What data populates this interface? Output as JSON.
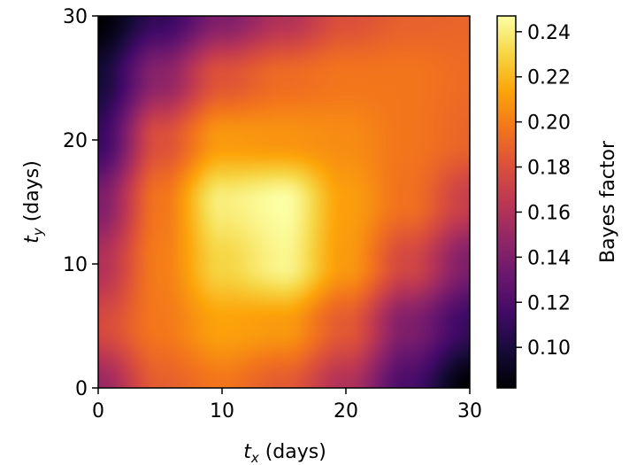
{
  "chart_data": {
    "type": "heatmap",
    "title": "",
    "xlabel": {
      "symbol": "t",
      "subscript": "x",
      "unit": " (days)"
    },
    "ylabel": {
      "symbol": "t",
      "subscript": "y",
      "unit": " (days)"
    },
    "xlim": [
      0,
      30
    ],
    "ylim": [
      0,
      30
    ],
    "xticks": [
      0,
      10,
      20,
      30
    ],
    "yticks": [
      0,
      10,
      20,
      30
    ],
    "colormap": "inferno",
    "grid": false,
    "colorbar": {
      "label": "Bayes factor",
      "range": [
        0.082,
        0.247
      ],
      "ticks": [
        "0.10",
        "0.12",
        "0.14",
        "0.16",
        "0.18",
        "0.20",
        "0.22",
        "0.24"
      ]
    },
    "grid_values": {
      "t_x": [
        0,
        5,
        10,
        15,
        20,
        25,
        30
      ],
      "t_y": [
        0,
        5,
        10,
        15,
        20,
        25,
        30
      ],
      "bayes_factor": [
        [
          0.15,
          0.187,
          0.197,
          0.185,
          0.16,
          0.118,
          0.082
        ],
        [
          0.177,
          0.198,
          0.213,
          0.21,
          0.185,
          0.14,
          0.112
        ],
        [
          0.16,
          0.2,
          0.23,
          0.243,
          0.21,
          0.175,
          0.14
        ],
        [
          0.14,
          0.197,
          0.24,
          0.247,
          0.212,
          0.195,
          0.17
        ],
        [
          0.112,
          0.18,
          0.21,
          0.208,
          0.205,
          0.197,
          0.19
        ],
        [
          0.098,
          0.145,
          0.182,
          0.193,
          0.197,
          0.197,
          0.193
        ],
        [
          0.082,
          0.11,
          0.14,
          0.16,
          0.18,
          0.188,
          0.19
        ]
      ]
    }
  }
}
